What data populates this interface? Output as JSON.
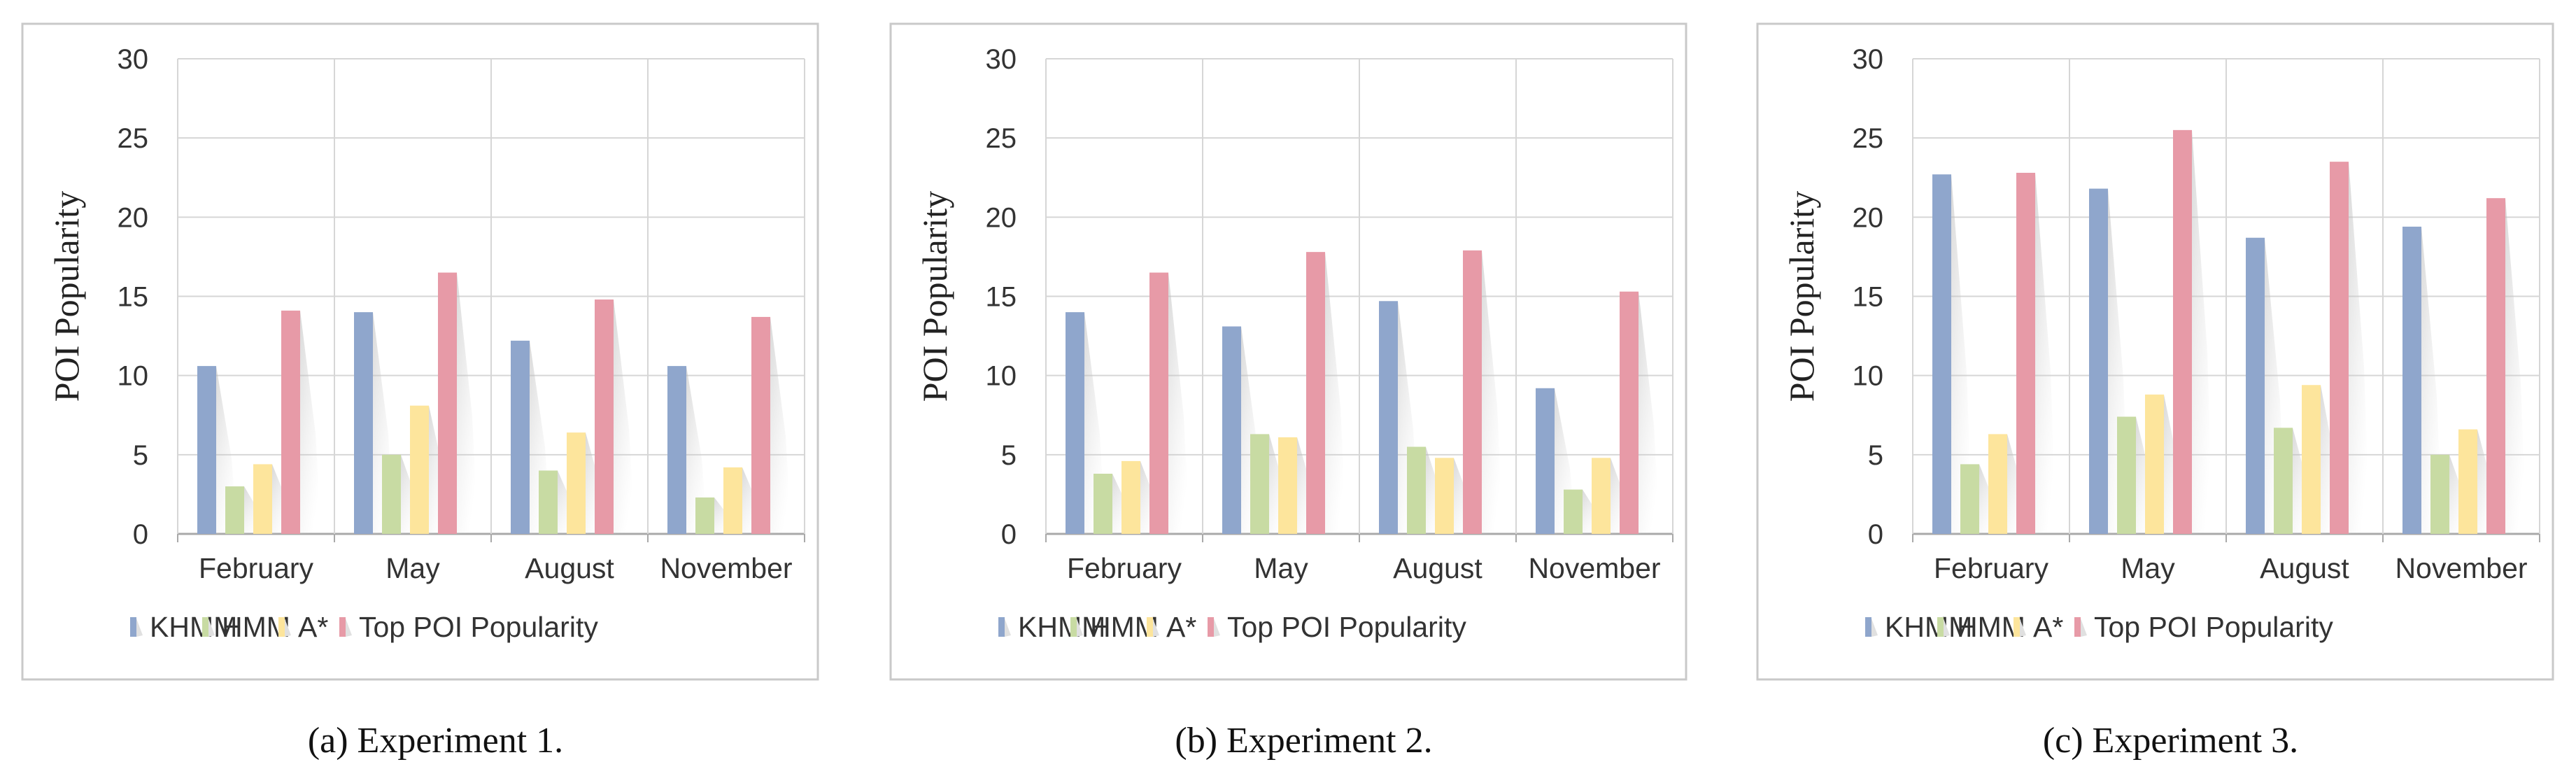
{
  "colors": {
    "KHMM": "#8fa6cc",
    "HMM": "#c8dba3",
    "A*": "#fde59c",
    "Top POI Popularity": "#e79aa7"
  },
  "chart_data": [
    {
      "type": "bar",
      "caption": "(a) Experiment 1.",
      "ylabel": "POI Popularity",
      "ylim": [
        0,
        30
      ],
      "yticks": [
        "0",
        "5",
        "10",
        "15",
        "20",
        "25",
        "30"
      ],
      "categories": [
        "February",
        "May",
        "August",
        "November"
      ],
      "legend_position": "bottom",
      "grid": true,
      "series": [
        {
          "name": "KHMM",
          "values": [
            10.6,
            14.0,
            12.2,
            10.6
          ]
        },
        {
          "name": "HMM",
          "values": [
            3.0,
            5.0,
            4.0,
            2.3
          ]
        },
        {
          "name": "A*",
          "values": [
            4.4,
            8.1,
            6.4,
            4.2
          ]
        },
        {
          "name": "Top POI Popularity",
          "values": [
            14.1,
            16.5,
            14.8,
            13.7
          ]
        }
      ]
    },
    {
      "type": "bar",
      "caption": "(b) Experiment 2.",
      "ylabel": "POI Popularity",
      "ylim": [
        0,
        30
      ],
      "yticks": [
        "0",
        "5",
        "10",
        "15",
        "20",
        "25",
        "30"
      ],
      "categories": [
        "February",
        "May",
        "August",
        "November"
      ],
      "legend_position": "bottom",
      "grid": true,
      "series": [
        {
          "name": "KHMM",
          "values": [
            14.0,
            13.1,
            14.7,
            9.2
          ]
        },
        {
          "name": "HMM",
          "values": [
            3.8,
            6.3,
            5.5,
            2.8
          ]
        },
        {
          "name": "A*",
          "values": [
            4.6,
            6.1,
            4.8,
            4.8
          ]
        },
        {
          "name": "Top POI Popularity",
          "values": [
            16.5,
            17.8,
            17.9,
            15.3
          ]
        }
      ]
    },
    {
      "type": "bar",
      "caption": "(c) Experiment 3.",
      "ylabel": "POI Popularity",
      "ylim": [
        0,
        30
      ],
      "yticks": [
        "0",
        "5",
        "10",
        "15",
        "20",
        "25",
        "30"
      ],
      "categories": [
        "February",
        "May",
        "August",
        "November"
      ],
      "legend_position": "bottom",
      "grid": true,
      "series": [
        {
          "name": "KHMM",
          "values": [
            22.7,
            21.8,
            18.7,
            19.4
          ]
        },
        {
          "name": "HMM",
          "values": [
            4.4,
            7.4,
            6.7,
            5.0
          ]
        },
        {
          "name": "A*",
          "values": [
            6.3,
            8.8,
            9.4,
            6.6
          ]
        },
        {
          "name": "Top POI Popularity",
          "values": [
            22.8,
            25.5,
            23.5,
            21.2
          ]
        }
      ]
    }
  ]
}
